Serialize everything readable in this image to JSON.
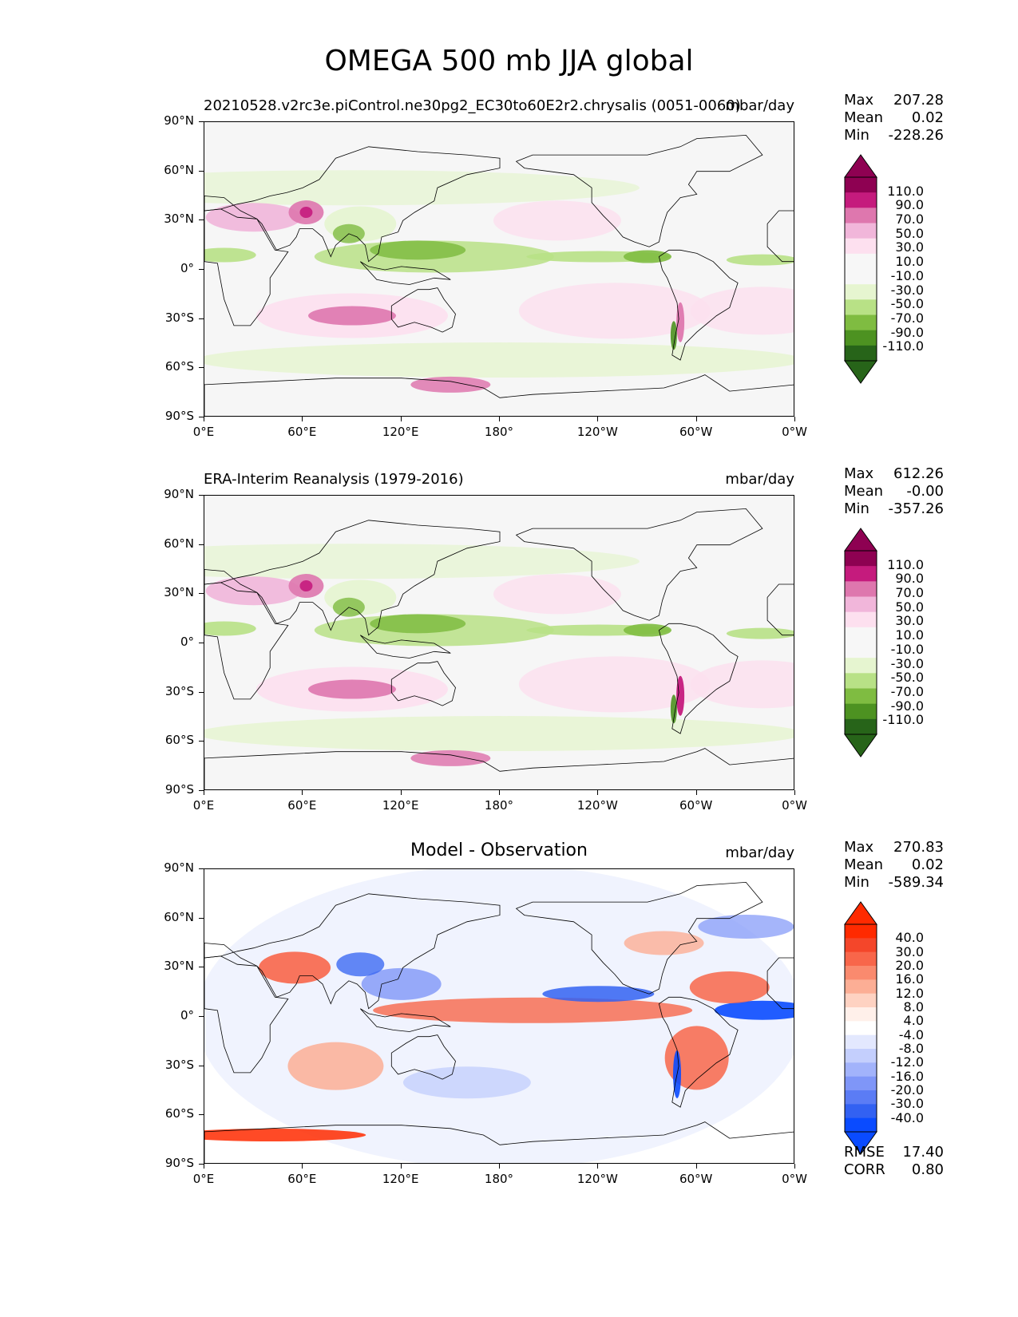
{
  "figure_title": "OMEGA 500 mb JJA global",
  "panels": [
    {
      "id": "model",
      "title_left": "20210528.v2rc3e.piControl.ne30pg2_EC30to60E2r2.chrysalis (0051-0060)",
      "title_center": "",
      "units": "mbar/day",
      "stats": {
        "max_label": "Max",
        "max": "207.28",
        "mean_label": "Mean",
        "mean": "0.02",
        "min_label": "Min",
        "min": "-228.26"
      },
      "colorbar": {
        "type": "diverging-green-pink",
        "levels": [
          "110.0",
          "90.0",
          "70.0",
          "50.0",
          "30.0",
          "10.0",
          "-10.0",
          "-30.0",
          "-50.0",
          "-70.0",
          "-90.0",
          "-110.0"
        ],
        "colors": [
          "#8e0152",
          "#c51b7d",
          "#de77ae",
          "#f1b6da",
          "#fde0ef",
          "#f7f7f7",
          "#f7f7f7",
          "#e6f5d0",
          "#b8e186",
          "#7fbc41",
          "#4d9221",
          "#276419"
        ]
      }
    },
    {
      "id": "obs",
      "title_left": "ERA-Interim Reanalysis (1979-2016)",
      "title_center": "",
      "units": "mbar/day",
      "stats": {
        "max_label": "Max",
        "max": "612.26",
        "mean_label": "Mean",
        "mean": "-0.00",
        "min_label": "Min",
        "min": "-357.26"
      },
      "colorbar": {
        "type": "diverging-green-pink",
        "levels": [
          "110.0",
          "90.0",
          "70.0",
          "50.0",
          "30.0",
          "10.0",
          "-10.0",
          "-30.0",
          "-50.0",
          "-70.0",
          "-90.0",
          "-110.0"
        ],
        "colors": [
          "#8e0152",
          "#c51b7d",
          "#de77ae",
          "#f1b6da",
          "#fde0ef",
          "#f7f7f7",
          "#f7f7f7",
          "#e6f5d0",
          "#b8e186",
          "#7fbc41",
          "#4d9221",
          "#276419"
        ]
      }
    },
    {
      "id": "diff",
      "title_left": "",
      "title_center": "Model - Observation",
      "units": "mbar/day",
      "stats": {
        "max_label": "Max",
        "max": "270.83",
        "mean_label": "Mean",
        "mean": "0.02",
        "min_label": "Min",
        "min": "-589.34"
      },
      "extra_stats": {
        "rmse_label": "RMSE",
        "rmse": "17.40",
        "corr_label": "CORR",
        "corr": "0.80"
      },
      "colorbar": {
        "type": "diverging-blue-red",
        "levels": [
          "40.0",
          "30.0",
          "20.0",
          "16.0",
          "12.0",
          "8.0",
          "4.0",
          "-4.0",
          "-8.0",
          "-12.0",
          "-16.0",
          "-20.0",
          "-30.0",
          "-40.0"
        ],
        "colors": [
          "#ff2a00",
          "#f4462a",
          "#f8664a",
          "#fa8a6e",
          "#fcae95",
          "#fed2c2",
          "#fff0ea",
          "#ffffff",
          "#e3e8fe",
          "#c4cffd",
          "#a2b3fb",
          "#7f96f8",
          "#5b7cf5",
          "#3261f2",
          "#0a4bff"
        ]
      }
    }
  ],
  "axes": {
    "lat_ticks": [
      "90°N",
      "60°N",
      "30°N",
      "0°",
      "30°S",
      "60°S",
      "90°S"
    ],
    "lon_ticks": [
      "0°E",
      "60°E",
      "120°E",
      "180°",
      "120°W",
      "60°W",
      "0°W"
    ]
  }
}
